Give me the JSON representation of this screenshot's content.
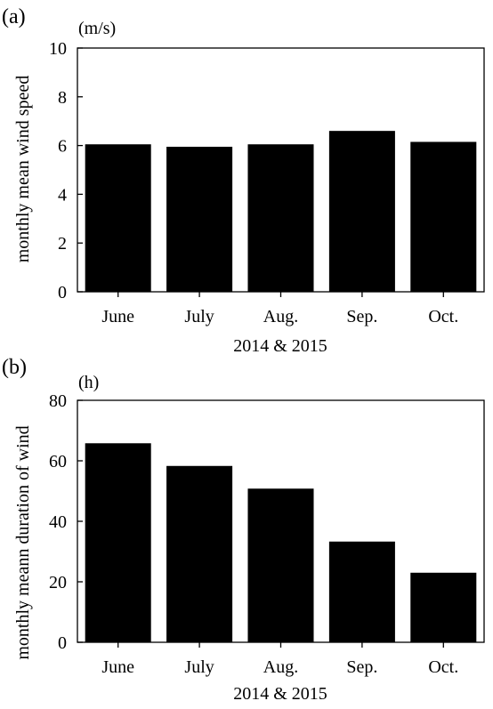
{
  "chart_data": [
    {
      "type": "bar",
      "panel_label": "(a)",
      "unit": "(m/s)",
      "categories": [
        "June",
        "July",
        "Aug.",
        "Sep.",
        "Oct."
      ],
      "values": [
        6.05,
        5.95,
        6.05,
        6.6,
        6.15
      ],
      "xlabel": "2014 & 2015",
      "ylabel": "monthly mean wind speed",
      "ylim": [
        0,
        10
      ],
      "yticks": [
        0,
        2,
        4,
        6,
        8,
        10
      ],
      "grid": false,
      "bar_color": "#000000"
    },
    {
      "type": "bar",
      "panel_label": "(b)",
      "unit": "(h)",
      "categories": [
        "June",
        "July",
        "Aug.",
        "Sep.",
        "Oct."
      ],
      "values": [
        65.8,
        58.3,
        50.8,
        33.3,
        23.0
      ],
      "xlabel": "2014 & 2015",
      "ylabel": "monthly meann duration of wind",
      "ylim": [
        0,
        80
      ],
      "yticks": [
        0,
        20,
        40,
        60,
        80
      ],
      "grid": false,
      "bar_color": "#000000"
    }
  ]
}
